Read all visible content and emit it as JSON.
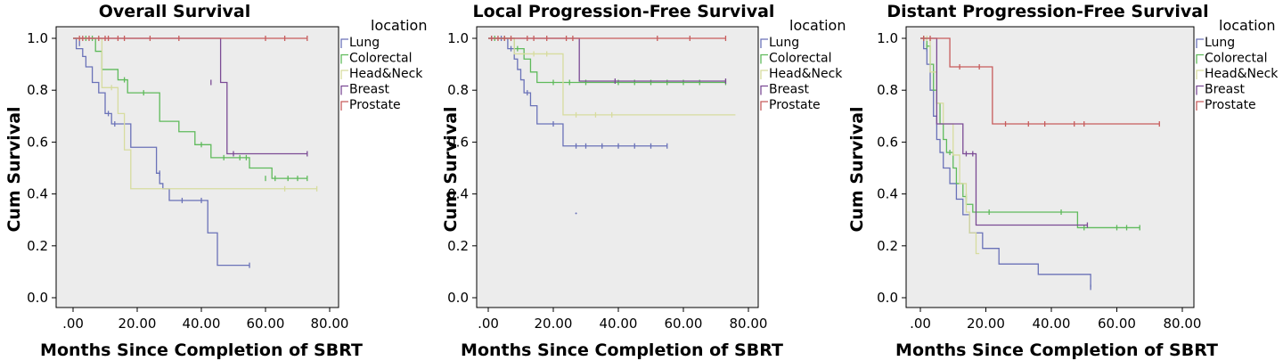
{
  "chart_data": [
    {
      "type": "line",
      "title": "Overall Survival",
      "xlabel": "Months Since Completion of SBRT",
      "ylabel": "Cum Survival",
      "xlim": [
        0,
        80
      ],
      "ylim": [
        0,
        1
      ],
      "xticks": [
        ".00",
        "20.00",
        "40.00",
        "60.00",
        "80.00"
      ],
      "yticks": [
        "0.0",
        "0.2",
        "0.4",
        "0.6",
        "0.8",
        "1.0"
      ],
      "legend_title": "location",
      "legend_position": "right",
      "grid": false,
      "series": [
        {
          "name": "Lung",
          "color": "#6a72b8",
          "x": [
            0,
            1,
            3,
            4,
            6,
            8,
            10,
            12,
            18,
            26,
            27,
            28,
            30,
            42,
            45,
            55
          ],
          "y": [
            1.0,
            0.96,
            0.93,
            0.89,
            0.83,
            0.79,
            0.71,
            0.67,
            0.58,
            0.48,
            0.44,
            0.42,
            0.375,
            0.25,
            0.125,
            0.125
          ],
          "censored": [
            [
              2,
              0.98
            ],
            [
              11,
              0.71
            ],
            [
              13,
              0.67
            ],
            [
              27,
              0.48
            ],
            [
              34,
              0.375
            ],
            [
              40,
              0.375
            ],
            [
              55,
              0.125
            ]
          ]
        },
        {
          "name": "Colorectal",
          "color": "#5fba5b",
          "x": [
            0,
            7,
            9,
            14,
            17,
            19,
            27,
            33,
            38,
            43,
            55,
            62,
            73
          ],
          "y": [
            1.0,
            0.95,
            0.88,
            0.84,
            0.79,
            0.79,
            0.68,
            0.64,
            0.59,
            0.54,
            0.5,
            0.46,
            0.46
          ],
          "censored": [
            [
              4,
              1.0
            ],
            [
              6,
              1.0
            ],
            [
              16,
              0.84
            ],
            [
              22,
              0.79
            ],
            [
              40,
              0.59
            ],
            [
              47,
              0.54
            ],
            [
              52,
              0.54
            ],
            [
              54,
              0.54
            ],
            [
              60,
              0.46
            ],
            [
              63,
              0.46
            ],
            [
              67,
              0.46
            ],
            [
              70,
              0.46
            ],
            [
              73,
              0.46
            ]
          ]
        },
        {
          "name": "Head&Neck",
          "color": "#d7dc9f",
          "x": [
            0,
            9,
            14,
            16,
            18,
            76
          ],
          "y": [
            1.0,
            0.81,
            0.71,
            0.57,
            0.42,
            0.42
          ],
          "censored": [
            [
              12,
              0.81
            ],
            [
              66,
              0.42
            ],
            [
              76,
              0.42
            ]
          ]
        },
        {
          "name": "Breast",
          "color": "#7b4b95",
          "x": [
            0,
            32,
            46,
            48,
            73
          ],
          "y": [
            1.0,
            1.0,
            0.83,
            0.555,
            0.555
          ],
          "censored": [
            [
              43,
              0.83
            ],
            [
              50,
              0.555
            ],
            [
              73,
              0.555
            ]
          ]
        },
        {
          "name": "Prostate",
          "color": "#c75c5c",
          "x": [
            0,
            73
          ],
          "y": [
            1.0,
            1.0
          ],
          "censored": [
            [
              2,
              1.0
            ],
            [
              3,
              1.0
            ],
            [
              5,
              1.0
            ],
            [
              8,
              1.0
            ],
            [
              10,
              1.0
            ],
            [
              11,
              1.0
            ],
            [
              14,
              1.0
            ],
            [
              16,
              1.0
            ],
            [
              24,
              1.0
            ],
            [
              33,
              1.0
            ],
            [
              60,
              1.0
            ],
            [
              66,
              1.0
            ],
            [
              73,
              1.0
            ]
          ]
        }
      ]
    },
    {
      "type": "line",
      "title": "Local Progression-Free Survival",
      "xlabel": "Months Since Completion of SBRT",
      "ylabel": "Cum Survival",
      "xlim": [
        0,
        80
      ],
      "ylim": [
        0,
        1
      ],
      "xticks": [
        ".00",
        "20.00",
        "40.00",
        "60.00",
        "80.00"
      ],
      "yticks": [
        "0.0",
        "0.2",
        "0.4",
        "0.6",
        "0.8",
        "1.0"
      ],
      "legend_title": "location",
      "legend_position": "right",
      "grid": false,
      "series": [
        {
          "name": "Lung",
          "color": "#6a72b8",
          "x": [
            0,
            6,
            8,
            9,
            10,
            11,
            13,
            15,
            23,
            55
          ],
          "y": [
            1.0,
            0.96,
            0.92,
            0.88,
            0.84,
            0.79,
            0.74,
            0.67,
            0.585,
            0.585
          ],
          "censored": [
            [
              1,
              1.0
            ],
            [
              4,
              1.0
            ],
            [
              7,
              0.96
            ],
            [
              12,
              0.79
            ],
            [
              20,
              0.67
            ],
            [
              27,
              0.585
            ],
            [
              30,
              0.585
            ],
            [
              35,
              0.585
            ],
            [
              40,
              0.585
            ],
            [
              45,
              0.585
            ],
            [
              50,
              0.585
            ],
            [
              55,
              0.585
            ]
          ]
        },
        {
          "name": "Colorectal",
          "color": "#5fba5b",
          "x": [
            0,
            8,
            11,
            13,
            15,
            18,
            73
          ],
          "y": [
            1.0,
            0.96,
            0.92,
            0.87,
            0.83,
            0.83,
            0.83
          ],
          "censored": [
            [
              2,
              1.0
            ],
            [
              5,
              1.0
            ],
            [
              9,
              0.96
            ],
            [
              20,
              0.83
            ],
            [
              25,
              0.83
            ],
            [
              30,
              0.83
            ],
            [
              40,
              0.83
            ],
            [
              45,
              0.83
            ],
            [
              50,
              0.83
            ],
            [
              55,
              0.83
            ],
            [
              60,
              0.83
            ],
            [
              65,
              0.83
            ],
            [
              73,
              0.83
            ]
          ]
        },
        {
          "name": "Head&Neck",
          "color": "#d7dc9f",
          "x": [
            0,
            8,
            11,
            23,
            76
          ],
          "y": [
            1.0,
            0.94,
            0.94,
            0.705,
            0.705
          ],
          "censored": [
            [
              14,
              0.94
            ],
            [
              18,
              0.94
            ],
            [
              27,
              0.705
            ],
            [
              33,
              0.705
            ],
            [
              38,
              0.705
            ]
          ]
        },
        {
          "name": "Breast",
          "color": "#7b4b95",
          "x": [
            0,
            28,
            73
          ],
          "y": [
            1.0,
            0.835,
            0.835
          ],
          "censored": [
            [
              39,
              0.835
            ],
            [
              73,
              0.835
            ]
          ]
        },
        {
          "name": "Prostate",
          "color": "#c75c5c",
          "x": [
            0,
            73
          ],
          "y": [
            1.0,
            1.0
          ],
          "censored": [
            [
              1,
              1.0
            ],
            [
              3,
              1.0
            ],
            [
              5,
              1.0
            ],
            [
              7,
              1.0
            ],
            [
              12,
              1.0
            ],
            [
              14,
              1.0
            ],
            [
              18,
              1.0
            ],
            [
              24,
              1.0
            ],
            [
              26,
              1.0
            ],
            [
              52,
              1.0
            ],
            [
              62,
              1.0
            ],
            [
              73,
              1.0
            ]
          ]
        }
      ],
      "stray_point": [
        27,
        0.325
      ]
    },
    {
      "type": "line",
      "title": "Distant Progression-Free Survival",
      "xlabel": "Months Since Completion of SBRT",
      "ylabel": "Cum Survival",
      "xlim": [
        0,
        80
      ],
      "ylim": [
        0,
        1
      ],
      "xticks": [
        ".00",
        "20.00",
        "40.00",
        "60.00",
        "80.00"
      ],
      "yticks": [
        "0.0",
        "0.2",
        "0.4",
        "0.6",
        "0.8",
        "1.0"
      ],
      "legend_title": "location",
      "legend_position": "right",
      "grid": false,
      "series": [
        {
          "name": "Lung",
          "color": "#6a72b8",
          "x": [
            0,
            1,
            2,
            3,
            4,
            5,
            6,
            7,
            9,
            11,
            13,
            15,
            19,
            24,
            36,
            52
          ],
          "y": [
            1.0,
            0.96,
            0.9,
            0.8,
            0.7,
            0.61,
            0.56,
            0.5,
            0.44,
            0.38,
            0.32,
            0.25,
            0.19,
            0.13,
            0.09,
            0.04
          ],
          "censored": [
            [
              2,
              0.96
            ],
            [
              52,
              0.04
            ]
          ]
        },
        {
          "name": "Colorectal",
          "color": "#5fba5b",
          "x": [
            0,
            2,
            3,
            4,
            5,
            6,
            7,
            8,
            10,
            11,
            13,
            14,
            16,
            18,
            48,
            67
          ],
          "y": [
            1.0,
            0.97,
            0.9,
            0.8,
            0.75,
            0.67,
            0.61,
            0.56,
            0.5,
            0.44,
            0.39,
            0.36,
            0.33,
            0.33,
            0.27,
            0.27
          ],
          "censored": [
            [
              1,
              1.0
            ],
            [
              2,
              0.97
            ],
            [
              9,
              0.56
            ],
            [
              14,
              0.39
            ],
            [
              21,
              0.33
            ],
            [
              43,
              0.33
            ],
            [
              50,
              0.27
            ],
            [
              60,
              0.27
            ],
            [
              63,
              0.27
            ],
            [
              67,
              0.27
            ]
          ]
        },
        {
          "name": "Head&Neck",
          "color": "#d7dc9f",
          "x": [
            0,
            3,
            5,
            7,
            10,
            12,
            14,
            15,
            17,
            18
          ],
          "y": [
            1.0,
            0.87,
            0.75,
            0.67,
            0.55,
            0.44,
            0.33,
            0.25,
            0.17,
            0.17
          ],
          "censored": [
            [
              2,
              1.0
            ]
          ]
        },
        {
          "name": "Breast",
          "color": "#7b4b95",
          "x": [
            0,
            5,
            9,
            13,
            17,
            51
          ],
          "y": [
            1.0,
            0.67,
            0.67,
            0.555,
            0.28,
            0.28
          ],
          "censored": [
            [
              14,
              0.555
            ],
            [
              16,
              0.555
            ],
            [
              51,
              0.28
            ]
          ]
        },
        {
          "name": "Prostate",
          "color": "#c75c5c",
          "x": [
            0,
            2,
            4,
            9,
            22,
            73
          ],
          "y": [
            1.0,
            1.0,
            1.0,
            0.89,
            0.67,
            0.67
          ],
          "censored": [
            [
              1,
              1.0
            ],
            [
              3,
              1.0
            ],
            [
              12,
              0.89
            ],
            [
              18,
              0.89
            ],
            [
              26,
              0.67
            ],
            [
              33,
              0.67
            ],
            [
              38,
              0.67
            ],
            [
              47,
              0.67
            ],
            [
              50,
              0.67
            ],
            [
              73,
              0.67
            ]
          ]
        }
      ]
    }
  ]
}
